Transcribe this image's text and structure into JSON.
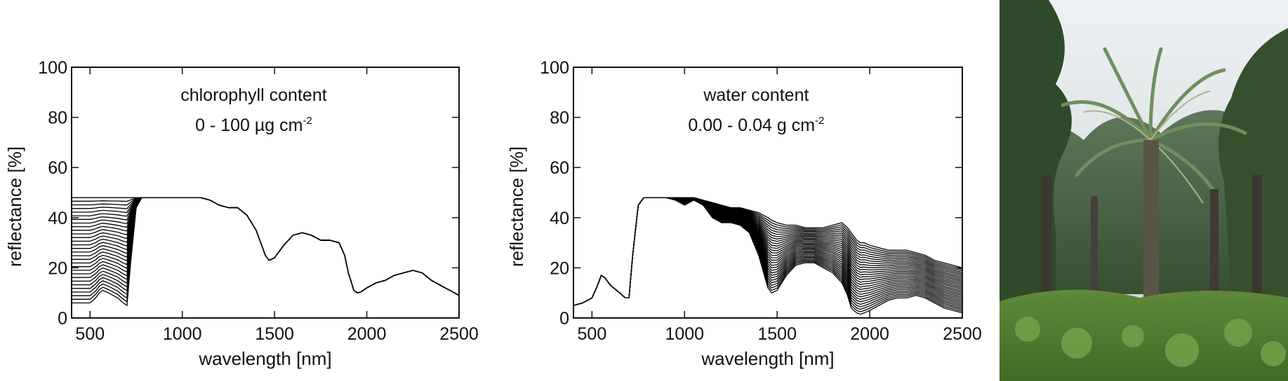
{
  "chart_data": [
    {
      "type": "line",
      "title": "",
      "xlabel": "wavelength [nm]",
      "ylabel": "reflectance [%]",
      "xlim": [
        400,
        2500
      ],
      "ylim": [
        0,
        100
      ],
      "xticks": [
        500,
        1000,
        1500,
        2000,
        2500
      ],
      "yticks": [
        0,
        20,
        40,
        60,
        80,
        100
      ],
      "grid": false,
      "annotation": {
        "line1": "chlorophyll content",
        "line2_base": "0 - 100 µg cm",
        "line2_sup": "-2"
      },
      "series_family": {
        "count": 30,
        "varies_region_nm": [
          400,
          780
        ],
        "x": [
          400,
          450,
          500,
          530,
          550,
          570,
          600,
          650,
          680,
          700,
          720,
          750,
          780,
          800,
          900,
          1000,
          1100,
          1150,
          1200,
          1250,
          1300,
          1350,
          1400,
          1450,
          1470,
          1500,
          1550,
          1600,
          1650,
          1700,
          1750,
          1800,
          1850,
          1880,
          1900,
          1930,
          1950,
          1970,
          2000,
          2050,
          2100,
          2150,
          2200,
          2250,
          2300,
          2350,
          2400,
          2450,
          2500
        ],
        "y_min_content": [
          48,
          48,
          48,
          48,
          48,
          48,
          48,
          48,
          48,
          48,
          48,
          48,
          48,
          48,
          48,
          48,
          48,
          47,
          45,
          44,
          44,
          41,
          35,
          25,
          23,
          24,
          29,
          33,
          34,
          33,
          31,
          31,
          30,
          25,
          18,
          11,
          10,
          10.5,
          12,
          14,
          15,
          17,
          18,
          19,
          18,
          15,
          13,
          11,
          9
        ],
        "y_max_content": [
          6,
          6,
          6,
          8,
          10,
          11,
          10,
          8,
          6,
          5,
          22,
          44,
          48,
          48,
          48,
          48,
          48,
          47,
          45,
          44,
          44,
          41,
          35,
          25,
          23,
          24,
          29,
          33,
          34,
          33,
          31,
          31,
          30,
          25,
          18,
          11,
          10,
          10.5,
          12,
          14,
          15,
          17,
          18,
          19,
          18,
          15,
          13,
          11,
          9
        ]
      }
    },
    {
      "type": "line",
      "title": "",
      "xlabel": "wavelength [nm]",
      "ylabel": "reflectance [%]",
      "xlim": [
        400,
        2500
      ],
      "ylim": [
        0,
        100
      ],
      "xticks": [
        500,
        1000,
        1500,
        2000,
        2500
      ],
      "yticks": [
        0,
        20,
        40,
        60,
        80,
        100
      ],
      "grid": false,
      "annotation": {
        "line1": "water content",
        "line2_base": "0.00 - 0.04 g cm",
        "line2_sup": "-2"
      },
      "series_family": {
        "count": 30,
        "varies_region_nm": [
          780,
          2500
        ],
        "x": [
          400,
          450,
          500,
          530,
          550,
          570,
          600,
          650,
          680,
          700,
          720,
          750,
          780,
          800,
          900,
          950,
          1000,
          1050,
          1100,
          1150,
          1200,
          1250,
          1300,
          1350,
          1400,
          1450,
          1470,
          1500,
          1550,
          1600,
          1650,
          1700,
          1750,
          1800,
          1850,
          1880,
          1900,
          1930,
          1950,
          1970,
          2000,
          2050,
          2100,
          2150,
          2200,
          2250,
          2300,
          2350,
          2400,
          2450,
          2500
        ],
        "y_min_content": [
          5,
          6,
          8,
          13,
          17,
          16,
          13,
          10,
          8,
          8,
          25,
          45,
          48,
          48,
          48,
          48,
          48,
          48,
          47,
          46,
          45,
          44,
          44,
          43,
          42,
          40,
          39,
          38,
          37,
          37,
          36,
          36,
          36,
          37,
          38,
          36,
          34,
          31,
          30,
          30,
          29,
          28,
          27,
          27,
          27,
          26,
          25,
          23,
          22,
          21,
          20
        ],
        "y_max_content": [
          5,
          6,
          8,
          13,
          17,
          16,
          13,
          10,
          8,
          8,
          25,
          45,
          48,
          48,
          48,
          47,
          45,
          47,
          45,
          40,
          38,
          38,
          37,
          34,
          25,
          12,
          10,
          11,
          17,
          21,
          22,
          22,
          20,
          18,
          14,
          9,
          4,
          2,
          1.5,
          2,
          3,
          5,
          7,
          8,
          8,
          9,
          8,
          6,
          4,
          3,
          2
        ]
      }
    }
  ],
  "photo": {
    "subject": "oil-palm-plantation"
  }
}
